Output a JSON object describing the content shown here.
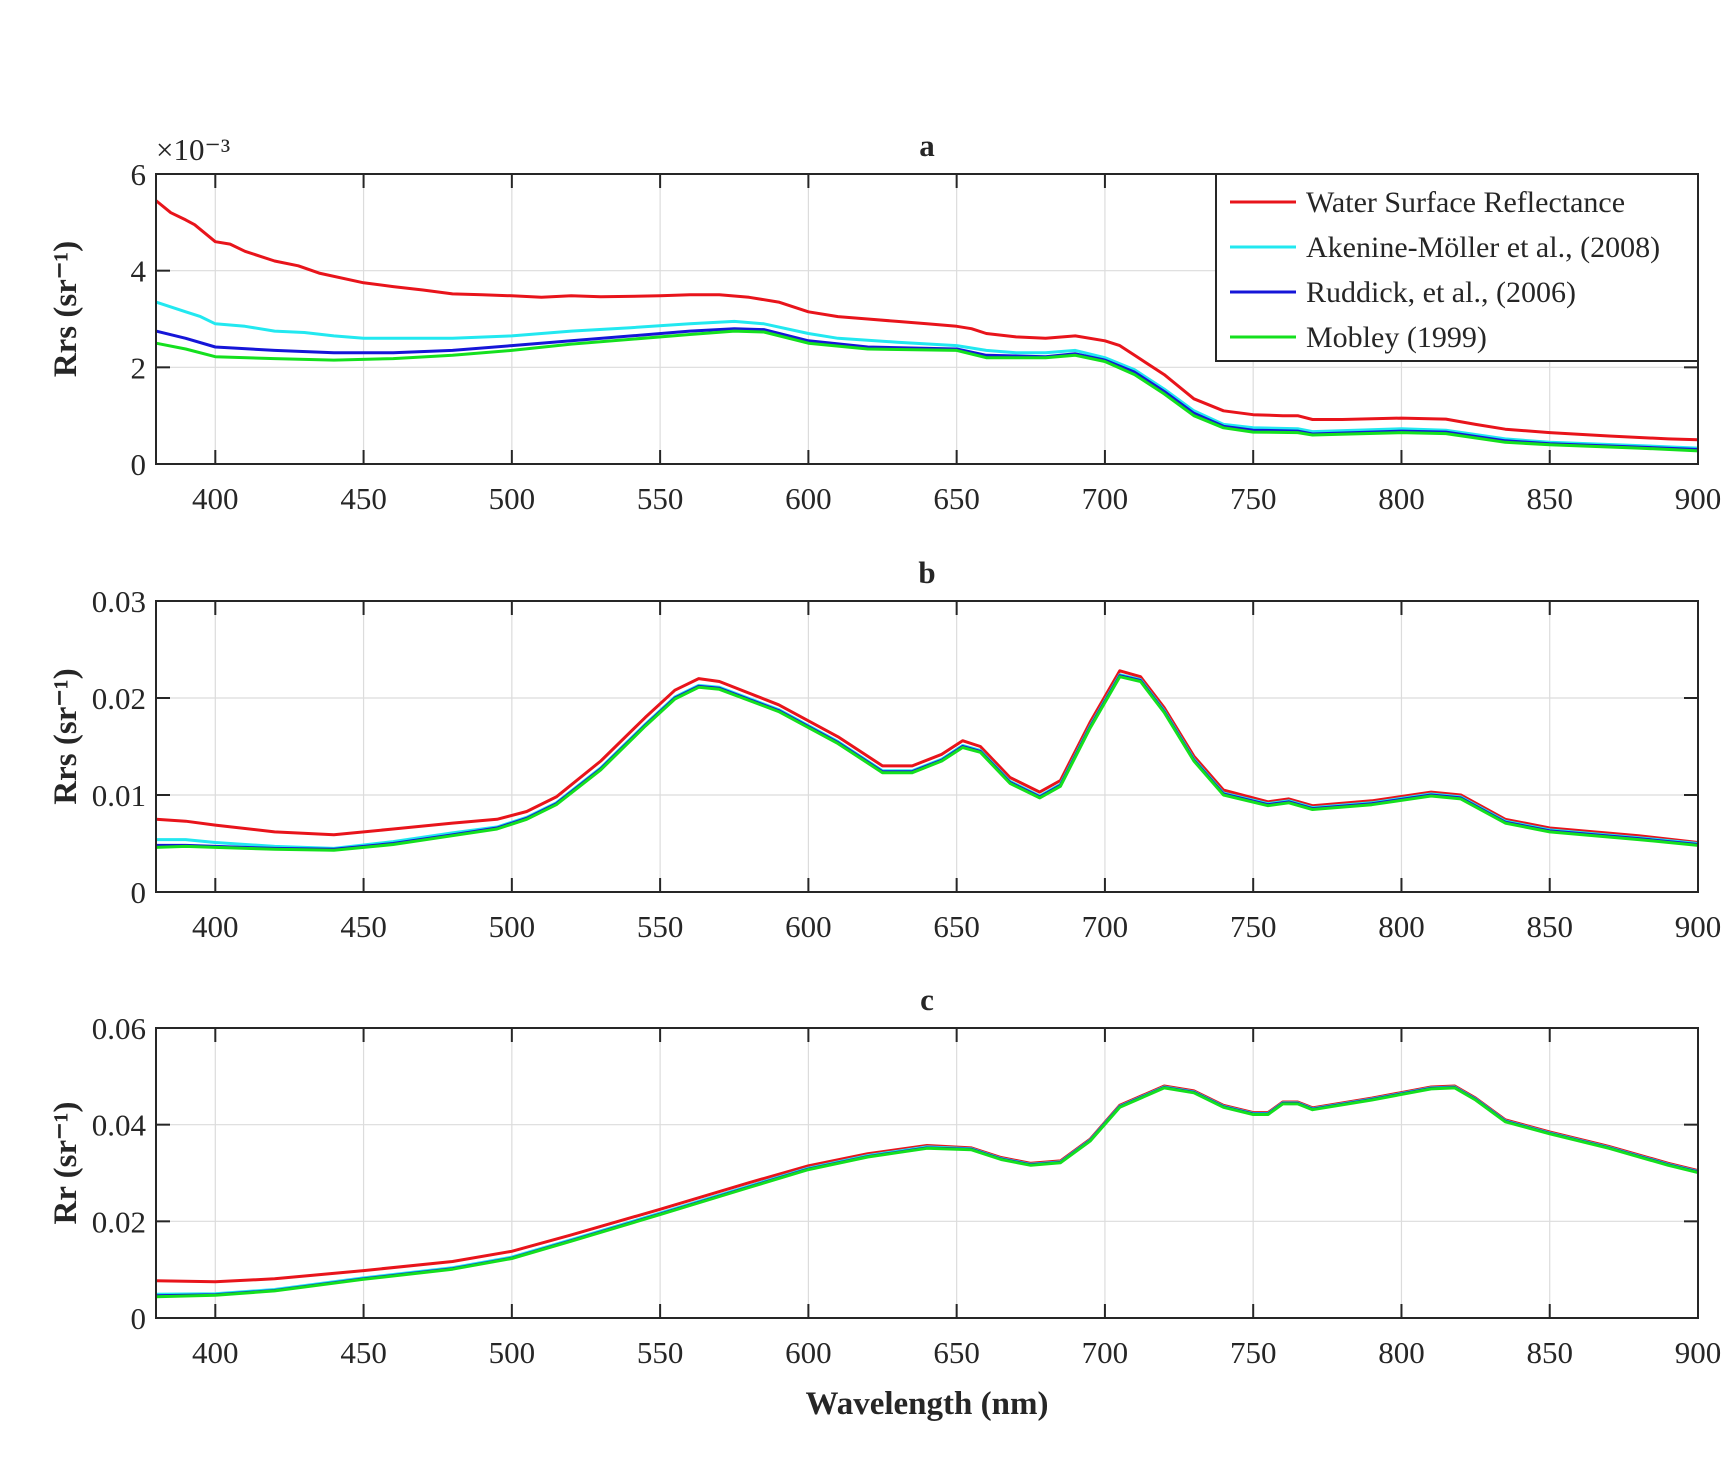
{
  "chart_data": [
    {
      "type": "line",
      "title": "a",
      "xlabel": "",
      "ylabel": "Rrs (sr⁻¹)",
      "y_multiplier_label": "×10⁻³",
      "xlim": [
        380,
        900
      ],
      "ylim": [
        0,
        6
      ],
      "y_scale": 0.001,
      "xticks": [
        400,
        450,
        500,
        550,
        600,
        650,
        700,
        750,
        800,
        850,
        900
      ],
      "yticks": [
        0,
        2,
        4,
        6
      ],
      "ytick_labels": [
        "0",
        "2",
        "4",
        "6"
      ],
      "grid": true,
      "legend": "top-right",
      "series": [
        {
          "name": "Water Surface Reflectance",
          "color": "#e8141b",
          "x": [
            380,
            385,
            390,
            393,
            400,
            405,
            410,
            420,
            428,
            435,
            450,
            460,
            470,
            480,
            490,
            500,
            510,
            520,
            530,
            550,
            560,
            570,
            580,
            590,
            600,
            610,
            620,
            630,
            640,
            650,
            655,
            660,
            670,
            680,
            690,
            700,
            705,
            710,
            720,
            730,
            740,
            750,
            760,
            765,
            770,
            780,
            800,
            815,
            825,
            835,
            850,
            870,
            890,
            900
          ],
          "y": [
            5.45,
            5.2,
            5.05,
            4.95,
            4.6,
            4.55,
            4.4,
            4.2,
            4.1,
            3.95,
            3.75,
            3.67,
            3.6,
            3.52,
            3.5,
            3.48,
            3.45,
            3.48,
            3.46,
            3.48,
            3.5,
            3.5,
            3.45,
            3.35,
            3.15,
            3.05,
            3.0,
            2.95,
            2.9,
            2.85,
            2.8,
            2.7,
            2.63,
            2.6,
            2.65,
            2.55,
            2.45,
            2.25,
            1.85,
            1.35,
            1.1,
            1.02,
            1.0,
            1.0,
            0.92,
            0.92,
            0.95,
            0.93,
            0.82,
            0.72,
            0.65,
            0.58,
            0.52,
            0.5
          ]
        },
        {
          "name": "Akenine-Möller et al., (2008)",
          "color": "#22e8f0",
          "x": [
            380,
            390,
            395,
            400,
            410,
            420,
            430,
            440,
            450,
            480,
            500,
            520,
            540,
            560,
            575,
            585,
            600,
            610,
            630,
            650,
            660,
            670,
            680,
            690,
            700,
            710,
            720,
            730,
            740,
            750,
            765,
            770,
            800,
            815,
            835,
            850,
            880,
            900
          ],
          "y": [
            3.35,
            3.15,
            3.05,
            2.9,
            2.85,
            2.75,
            2.72,
            2.65,
            2.6,
            2.6,
            2.65,
            2.75,
            2.82,
            2.9,
            2.95,
            2.9,
            2.7,
            2.6,
            2.52,
            2.45,
            2.35,
            2.3,
            2.3,
            2.35,
            2.2,
            1.95,
            1.55,
            1.1,
            0.82,
            0.75,
            0.73,
            0.67,
            0.73,
            0.7,
            0.52,
            0.45,
            0.38,
            0.33
          ]
        },
        {
          "name": "Ruddick, et al., (2006)",
          "color": "#1515d8",
          "x": [
            380,
            390,
            400,
            420,
            440,
            460,
            480,
            500,
            520,
            560,
            575,
            585,
            600,
            620,
            650,
            660,
            680,
            690,
            700,
            710,
            720,
            730,
            740,
            750,
            765,
            770,
            800,
            815,
            835,
            850,
            880,
            900
          ],
          "y": [
            2.75,
            2.6,
            2.42,
            2.35,
            2.3,
            2.3,
            2.35,
            2.45,
            2.55,
            2.75,
            2.8,
            2.78,
            2.55,
            2.42,
            2.38,
            2.25,
            2.22,
            2.28,
            2.15,
            1.9,
            1.5,
            1.05,
            0.78,
            0.7,
            0.68,
            0.62,
            0.68,
            0.66,
            0.48,
            0.42,
            0.35,
            0.3
          ]
        },
        {
          "name": "Mobley (1999)",
          "color": "#14e01e",
          "x": [
            380,
            390,
            400,
            420,
            440,
            460,
            480,
            500,
            520,
            560,
            575,
            585,
            600,
            620,
            650,
            660,
            680,
            690,
            700,
            710,
            720,
            730,
            740,
            750,
            765,
            770,
            800,
            815,
            835,
            850,
            880,
            900
          ],
          "y": [
            2.5,
            2.38,
            2.22,
            2.18,
            2.15,
            2.18,
            2.25,
            2.35,
            2.48,
            2.68,
            2.75,
            2.73,
            2.5,
            2.38,
            2.35,
            2.2,
            2.2,
            2.25,
            2.12,
            1.85,
            1.45,
            1.0,
            0.75,
            0.66,
            0.65,
            0.6,
            0.65,
            0.63,
            0.45,
            0.4,
            0.33,
            0.27
          ]
        }
      ]
    },
    {
      "type": "line",
      "title": "b",
      "xlabel": "",
      "ylabel": "Rrs (sr⁻¹)",
      "xlim": [
        380,
        900
      ],
      "ylim": [
        0,
        0.03
      ],
      "xticks": [
        400,
        450,
        500,
        550,
        600,
        650,
        700,
        750,
        800,
        850,
        900
      ],
      "yticks": [
        0,
        0.01,
        0.02,
        0.03
      ],
      "ytick_labels": [
        "0",
        "0.01",
        "0.02",
        "0.03"
      ],
      "grid": true,
      "series": [
        {
          "color": "#e8141b",
          "x": [
            380,
            390,
            400,
            420,
            440,
            460,
            480,
            495,
            505,
            515,
            530,
            545,
            555,
            563,
            570,
            590,
            610,
            625,
            635,
            645,
            652,
            658,
            668,
            678,
            685,
            695,
            705,
            712,
            720,
            730,
            740,
            755,
            762,
            770,
            790,
            810,
            820,
            835,
            850,
            880,
            900
          ],
          "y": [
            0.0075,
            0.0073,
            0.0069,
            0.0062,
            0.0059,
            0.0065,
            0.0071,
            0.0075,
            0.0083,
            0.0098,
            0.0135,
            0.018,
            0.0208,
            0.022,
            0.0217,
            0.0193,
            0.016,
            0.013,
            0.013,
            0.0142,
            0.0156,
            0.015,
            0.0118,
            0.0103,
            0.0115,
            0.0175,
            0.0228,
            0.0222,
            0.019,
            0.014,
            0.0105,
            0.0093,
            0.0096,
            0.0089,
            0.0094,
            0.0103,
            0.01,
            0.0075,
            0.0066,
            0.0058,
            0.0051
          ]
        },
        {
          "color": "#22e8f0",
          "x": [
            380,
            390,
            400,
            420,
            440,
            460,
            480,
            495,
            505,
            515,
            530,
            545,
            555,
            563,
            570,
            590,
            610,
            625,
            635,
            645,
            652,
            658,
            668,
            678,
            685,
            695,
            705,
            712,
            720,
            730,
            740,
            755,
            762,
            770,
            790,
            810,
            820,
            835,
            850,
            880,
            900
          ],
          "y": [
            0.0054,
            0.0054,
            0.0051,
            0.0047,
            0.0045,
            0.0052,
            0.0061,
            0.0067,
            0.0077,
            0.0092,
            0.0128,
            0.0173,
            0.0201,
            0.0213,
            0.0211,
            0.0188,
            0.0155,
            0.0125,
            0.0125,
            0.0137,
            0.0151,
            0.0146,
            0.0114,
            0.0099,
            0.0111,
            0.0171,
            0.0224,
            0.0219,
            0.0187,
            0.0137,
            0.0102,
            0.0091,
            0.0094,
            0.0087,
            0.0092,
            0.0101,
            0.0098,
            0.0073,
            0.0064,
            0.0056,
            0.005
          ]
        },
        {
          "color": "#1515d8",
          "x": [
            380,
            390,
            400,
            420,
            440,
            460,
            480,
            495,
            505,
            515,
            530,
            545,
            555,
            563,
            570,
            590,
            610,
            625,
            635,
            645,
            652,
            658,
            668,
            678,
            685,
            695,
            705,
            712,
            720,
            730,
            740,
            755,
            762,
            770,
            790,
            810,
            820,
            835,
            850,
            880,
            900
          ],
          "y": [
            0.0048,
            0.0048,
            0.0047,
            0.0045,
            0.0044,
            0.005,
            0.0059,
            0.0066,
            0.0076,
            0.0091,
            0.0127,
            0.0172,
            0.02,
            0.0212,
            0.021,
            0.0187,
            0.0154,
            0.0124,
            0.0124,
            0.0136,
            0.015,
            0.0145,
            0.0113,
            0.0098,
            0.011,
            0.017,
            0.0223,
            0.0218,
            0.0186,
            0.0136,
            0.0101,
            0.009,
            0.0093,
            0.0086,
            0.0091,
            0.01,
            0.0097,
            0.0072,
            0.0063,
            0.0055,
            0.0049
          ]
        },
        {
          "color": "#14e01e",
          "x": [
            380,
            390,
            400,
            420,
            440,
            460,
            480,
            495,
            505,
            515,
            530,
            545,
            555,
            563,
            570,
            590,
            610,
            625,
            635,
            645,
            652,
            658,
            668,
            678,
            685,
            695,
            705,
            712,
            720,
            730,
            740,
            755,
            762,
            770,
            790,
            810,
            820,
            835,
            850,
            880,
            900
          ],
          "y": [
            0.0046,
            0.0047,
            0.0046,
            0.0044,
            0.0043,
            0.0049,
            0.0058,
            0.0065,
            0.0075,
            0.009,
            0.0126,
            0.0171,
            0.0199,
            0.0211,
            0.0209,
            0.0186,
            0.0153,
            0.0123,
            0.0123,
            0.0135,
            0.0149,
            0.0144,
            0.0112,
            0.0097,
            0.0109,
            0.0169,
            0.0222,
            0.0217,
            0.0185,
            0.0135,
            0.01,
            0.0089,
            0.0092,
            0.0085,
            0.009,
            0.0099,
            0.0096,
            0.0071,
            0.0062,
            0.0054,
            0.0048
          ]
        }
      ]
    },
    {
      "type": "line",
      "title": "c",
      "xlabel": "Wavelength (nm)",
      "ylabel": "Rr (sr⁻¹)",
      "xlim": [
        380,
        900
      ],
      "ylim": [
        0,
        0.06
      ],
      "xticks": [
        400,
        450,
        500,
        550,
        600,
        650,
        700,
        750,
        800,
        850,
        900
      ],
      "yticks": [
        0,
        0.02,
        0.04,
        0.06
      ],
      "ytick_labels": [
        "0",
        "0.02",
        "0.04",
        "0.06"
      ],
      "grid": true,
      "series": [
        {
          "color": "#e8141b",
          "x": [
            380,
            400,
            420,
            450,
            480,
            500,
            520,
            550,
            580,
            600,
            620,
            640,
            655,
            665,
            675,
            685,
            695,
            705,
            720,
            730,
            740,
            750,
            755,
            760,
            765,
            770,
            790,
            810,
            818,
            825,
            835,
            850,
            870,
            890,
            900
          ],
          "y": [
            0.0077,
            0.0075,
            0.0081,
            0.0098,
            0.0117,
            0.0138,
            0.0172,
            0.0225,
            0.028,
            0.0315,
            0.034,
            0.0357,
            0.0352,
            0.0332,
            0.032,
            0.0325,
            0.037,
            0.044,
            0.048,
            0.047,
            0.044,
            0.0425,
            0.0425,
            0.0447,
            0.0447,
            0.0435,
            0.0455,
            0.0478,
            0.048,
            0.0455,
            0.041,
            0.0385,
            0.0355,
            0.032,
            0.0305
          ]
        },
        {
          "color": "#22e8f0",
          "x": [
            380,
            400,
            420,
            450,
            480,
            500,
            520,
            550,
            580,
            600,
            620,
            640,
            655,
            665,
            675,
            685,
            695,
            705,
            720,
            730,
            740,
            750,
            755,
            760,
            765,
            770,
            790,
            810,
            818,
            825,
            835,
            850,
            870,
            890,
            900
          ],
          "y": [
            0.0049,
            0.005,
            0.0059,
            0.0083,
            0.0104,
            0.0126,
            0.0162,
            0.0217,
            0.0273,
            0.031,
            0.0336,
            0.0354,
            0.035,
            0.033,
            0.0318,
            0.0323,
            0.0368,
            0.0438,
            0.0478,
            0.0468,
            0.0438,
            0.0423,
            0.0423,
            0.0445,
            0.0445,
            0.0433,
            0.0453,
            0.0476,
            0.0478,
            0.0453,
            0.0408,
            0.0383,
            0.0353,
            0.0318,
            0.0303
          ]
        },
        {
          "color": "#1515d8",
          "x": [
            380,
            400,
            420,
            450,
            480,
            500,
            520,
            550,
            580,
            600,
            620,
            640,
            655,
            665,
            675,
            685,
            695,
            705,
            720,
            730,
            740,
            750,
            755,
            760,
            765,
            770,
            790,
            810,
            818,
            825,
            835,
            850,
            870,
            890,
            900
          ],
          "y": [
            0.0046,
            0.0048,
            0.0057,
            0.0081,
            0.0102,
            0.0124,
            0.016,
            0.0215,
            0.0271,
            0.0308,
            0.0334,
            0.0352,
            0.0349,
            0.0329,
            0.0317,
            0.0322,
            0.0367,
            0.0437,
            0.0477,
            0.0467,
            0.0437,
            0.0422,
            0.0422,
            0.0444,
            0.0444,
            0.0432,
            0.0452,
            0.0475,
            0.0477,
            0.0452,
            0.0407,
            0.0382,
            0.0352,
            0.0317,
            0.0302
          ]
        },
        {
          "color": "#14e01e",
          "x": [
            380,
            400,
            420,
            450,
            480,
            500,
            520,
            550,
            580,
            600,
            620,
            640,
            655,
            665,
            675,
            685,
            695,
            705,
            720,
            730,
            740,
            750,
            755,
            760,
            765,
            770,
            790,
            810,
            818,
            825,
            835,
            850,
            870,
            890,
            900
          ],
          "y": [
            0.0044,
            0.0047,
            0.0056,
            0.008,
            0.0101,
            0.0123,
            0.0159,
            0.0214,
            0.027,
            0.0307,
            0.0333,
            0.0351,
            0.0348,
            0.0328,
            0.0316,
            0.0321,
            0.0366,
            0.0436,
            0.0476,
            0.0466,
            0.0436,
            0.0421,
            0.0421,
            0.0443,
            0.0443,
            0.0431,
            0.0451,
            0.0474,
            0.0476,
            0.0451,
            0.0406,
            0.0381,
            0.0351,
            0.0316,
            0.0301
          ]
        }
      ]
    }
  ]
}
